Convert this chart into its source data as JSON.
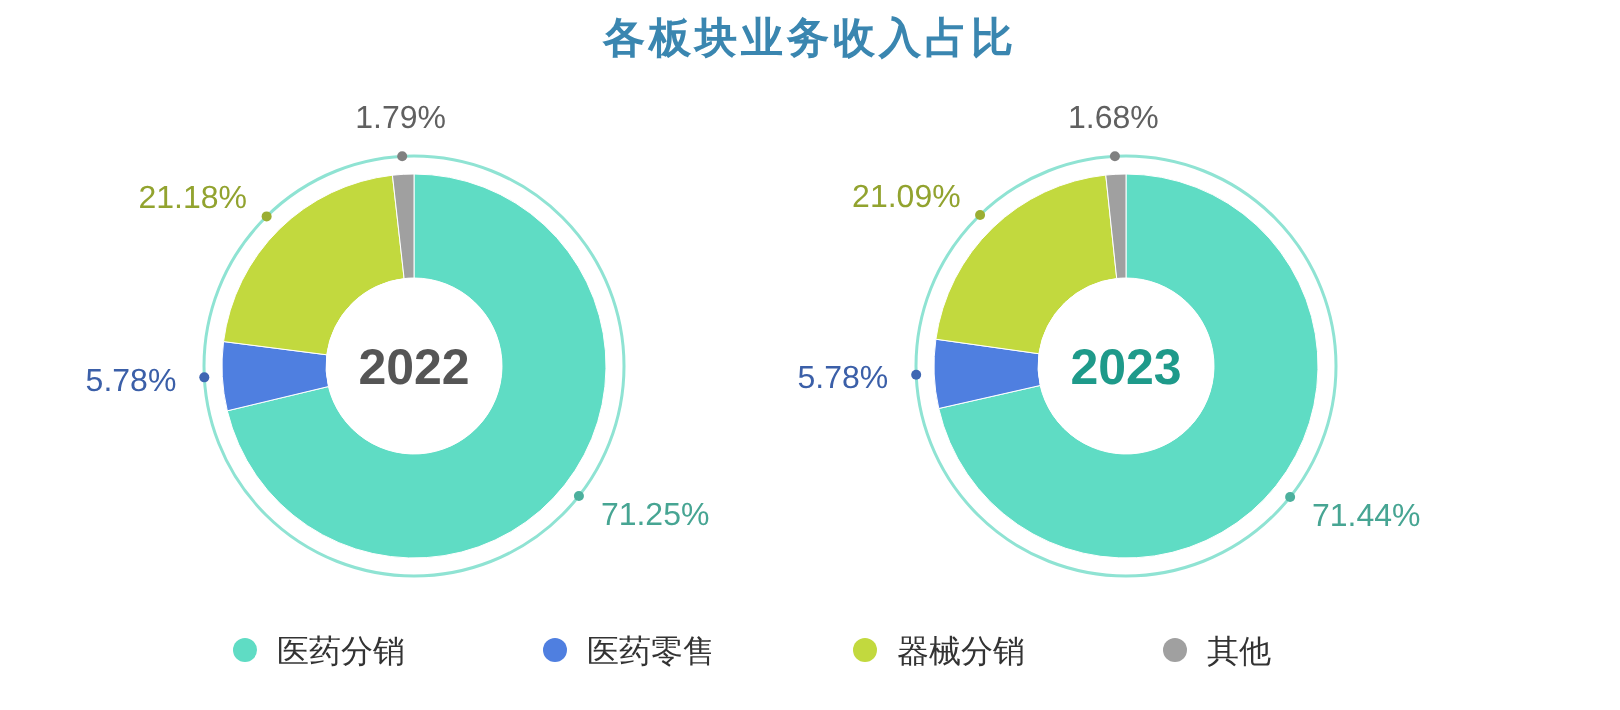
{
  "chart_data": [
    {
      "type": "donut",
      "title": "各板块业务收入占比",
      "annotations": [
        "2022"
      ],
      "legend": "bottom",
      "categories": [
        "医药分销",
        "医药零售",
        "器械分销",
        "其他"
      ],
      "values": [
        71.25,
        5.78,
        21.18,
        1.79
      ],
      "value_labels": [
        "71.25%",
        "5.78%",
        "21.18%",
        "1.79%"
      ],
      "colors": [
        "#5fdcc4",
        "#4f7fe0",
        "#c2d93e",
        "#a0a0a0"
      ]
    },
    {
      "type": "donut",
      "annotations": [
        "2023"
      ],
      "categories": [
        null,
        null,
        null,
        null
      ],
      "values": [
        71.44,
        5.78,
        21.09,
        1.68
      ],
      "value_labels": [
        "71.44%",
        "5.78%",
        "21.09%",
        "1.68%"
      ],
      "colors": [
        "#5fdcc4",
        "#4f7fe0",
        "#c2d93e",
        "#a0a0a0"
      ]
    }
  ]
}
